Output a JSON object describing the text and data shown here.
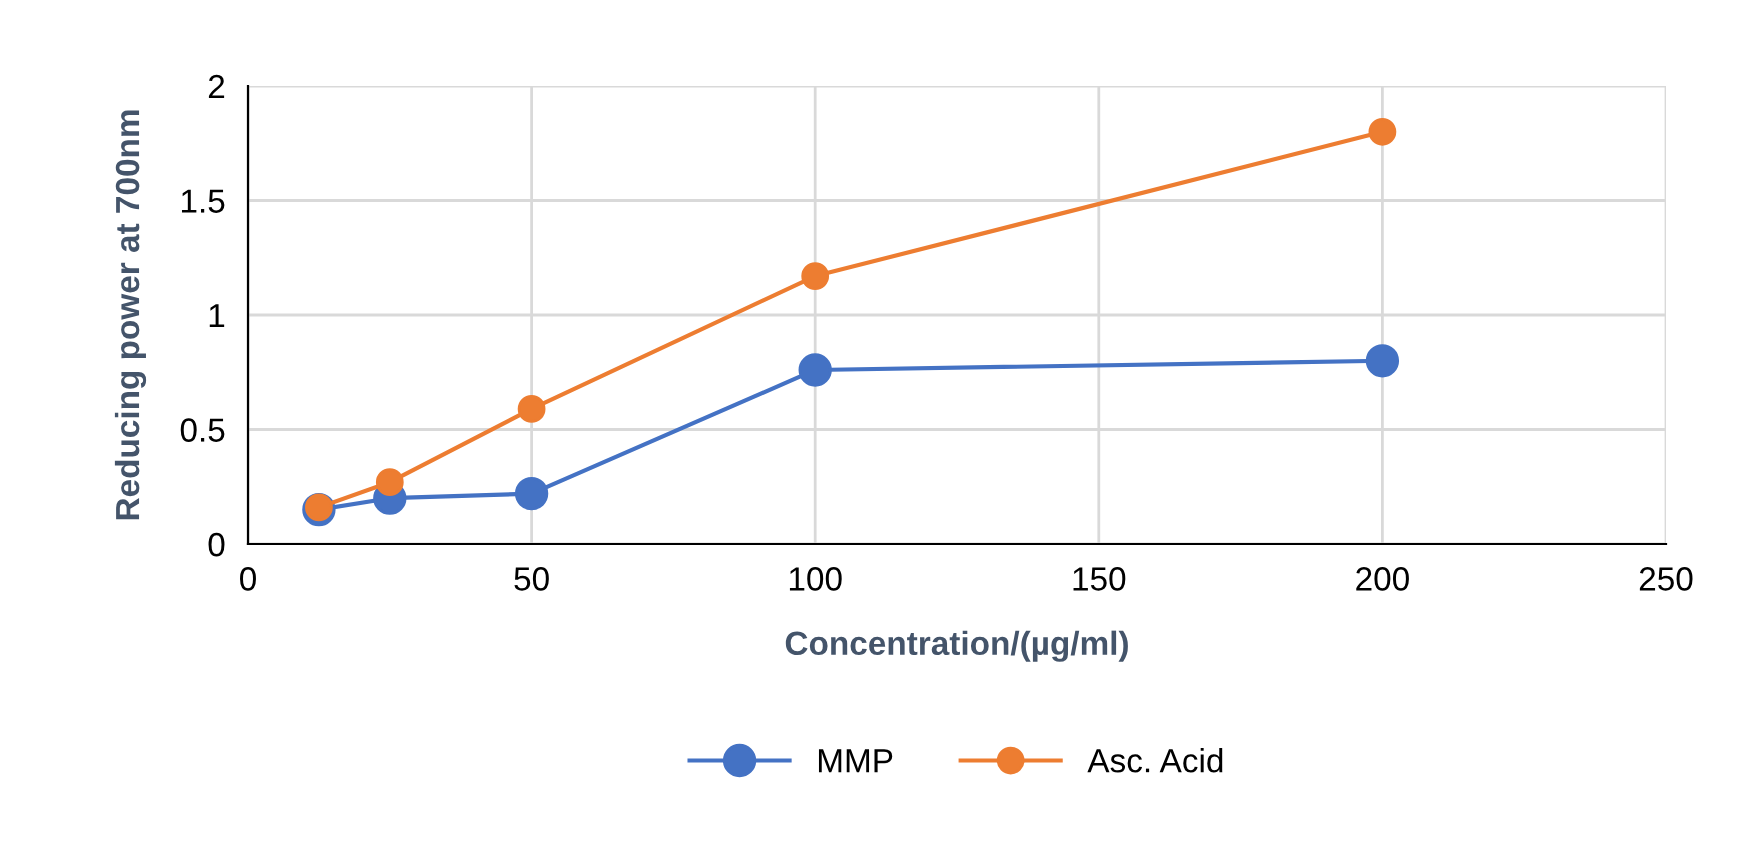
{
  "chart_data": {
    "type": "line",
    "xlabel": "Concentration/(µg/ml)",
    "ylabel": "Reducing power at 700nm",
    "x": [
      12.5,
      25,
      50,
      100,
      200
    ],
    "series": [
      {
        "name": "MMP",
        "color": "#4472c4",
        "values": [
          0.15,
          0.2,
          0.22,
          0.76,
          0.8
        ]
      },
      {
        "name": "Asc. Acid",
        "color": "#ed7d31",
        "values": [
          0.16,
          0.27,
          0.59,
          1.17,
          1.8
        ]
      }
    ],
    "xlim": [
      0,
      250
    ],
    "xticks": [
      0,
      50,
      100,
      150,
      200,
      250
    ],
    "ylim": [
      0,
      2
    ],
    "yticks": [
      0,
      0.5,
      1,
      1.5,
      2
    ],
    "grid": true,
    "legend": "bottom",
    "marker": "circle",
    "line_style": "solid"
  }
}
